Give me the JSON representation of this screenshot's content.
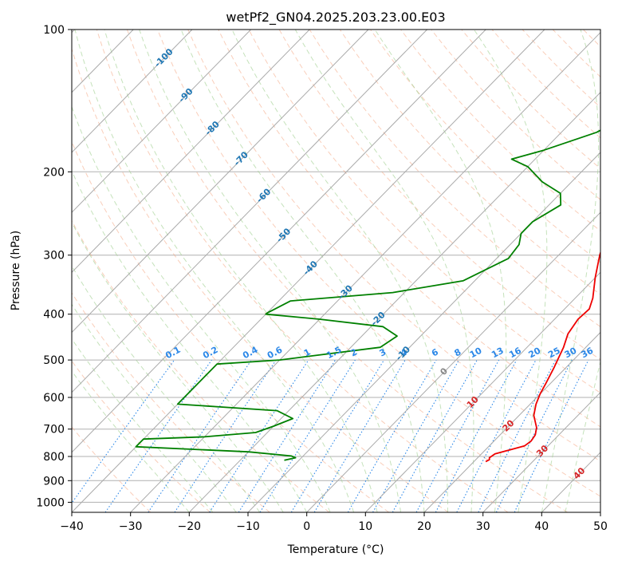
{
  "chart_data": {
    "type": "line",
    "title": "wetPf2_GN04.2025.203.23.00.E03",
    "xlabel": "Temperature (°C)",
    "ylabel": "Pressure (hPa)",
    "xlim": [
      -40,
      50
    ],
    "ylim": [
      1050,
      100
    ],
    "y_scale": "log",
    "x_ticks": [
      -40,
      -30,
      -20,
      -10,
      0,
      10,
      20,
      30,
      40,
      50
    ],
    "x_tick_labels": [
      "−40",
      "−30",
      "−20",
      "−10",
      "0",
      "10",
      "20",
      "30",
      "40",
      "50"
    ],
    "y_ticks": [
      100,
      200,
      300,
      400,
      500,
      600,
      700,
      800,
      900,
      1000
    ],
    "y_tick_labels": [
      "100",
      "200",
      "300",
      "400",
      "500",
      "600",
      "700",
      "800",
      "900",
      "1000"
    ],
    "grid": true,
    "series": [
      {
        "role": "temperature",
        "color": "#ee0000",
        "points": [
          [
            22.0,
            820
          ],
          [
            22.3,
            812
          ],
          [
            22.0,
            805
          ],
          [
            22.3,
            790
          ],
          [
            23.5,
            780
          ],
          [
            26.0,
            760
          ],
          [
            26.3,
            742
          ],
          [
            26.0,
            720
          ],
          [
            25.0,
            695
          ],
          [
            22.5,
            655
          ],
          [
            21.0,
            620
          ],
          [
            20.0,
            590
          ],
          [
            19.2,
            560
          ],
          [
            18.0,
            520
          ],
          [
            17.3,
            500
          ],
          [
            16.2,
            470
          ],
          [
            14.7,
            440
          ],
          [
            14.0,
            410
          ],
          [
            14.2,
            390
          ],
          [
            13.0,
            370
          ],
          [
            10.0,
            335
          ],
          [
            7.0,
            300
          ],
          [
            5.0,
            275
          ],
          [
            3.0,
            245
          ],
          [
            2.6,
            230
          ],
          [
            3.6,
            215
          ],
          [
            4.8,
            200
          ],
          [
            5.7,
            185
          ],
          [
            6.0,
            168
          ],
          [
            5.7,
            150
          ],
          [
            5.2,
            135
          ],
          [
            4.8,
            120
          ],
          [
            5.2,
            110
          ],
          [
            6.5,
            104
          ],
          [
            7.8,
            100
          ]
        ]
      },
      {
        "role": "dewpoint",
        "color": "#008000",
        "points": [
          [
            -12.5,
            815
          ],
          [
            -11.0,
            805
          ],
          [
            -12.0,
            798
          ],
          [
            -20.0,
            782
          ],
          [
            -40.0,
            763
          ],
          [
            -40.0,
            735
          ],
          [
            -30.0,
            727
          ],
          [
            -22.0,
            712
          ],
          [
            -20.0,
            690
          ],
          [
            -18.0,
            665
          ],
          [
            -22.0,
            640
          ],
          [
            -40.0,
            620
          ],
          [
            -40.0,
            510
          ],
          [
            -30.0,
            500
          ],
          [
            -15.0,
            470
          ],
          [
            -14.0,
            445
          ],
          [
            -18.0,
            425
          ],
          [
            -30.0,
            410
          ],
          [
            -40.0,
            400
          ],
          [
            -40.0,
            398
          ],
          [
            -38.0,
            375
          ],
          [
            -22.0,
            360
          ],
          [
            -12.0,
            340
          ],
          [
            -8.0,
            305
          ],
          [
            -8.5,
            285
          ],
          [
            -10.0,
            270
          ],
          [
            -10.0,
            255
          ],
          [
            -8.0,
            235
          ],
          [
            -10.0,
            222
          ],
          [
            -15.0,
            210
          ],
          [
            -20.0,
            195
          ],
          [
            -24.0,
            188
          ],
          [
            -20.0,
            180
          ],
          [
            -14.0,
            165
          ],
          [
            -12.0,
            155
          ],
          [
            -10.5,
            140
          ],
          [
            -9.5,
            128
          ],
          [
            -7.5,
            118
          ],
          [
            -5.0,
            110
          ],
          [
            -3.0,
            104
          ],
          [
            -2.0,
            100
          ]
        ]
      }
    ],
    "isotherm_labels": [
      "-100",
      "-90",
      "-80",
      "-70",
      "-60",
      "-50",
      "-40",
      "-30",
      "-20",
      "-10",
      "0",
      "10",
      "20",
      "30",
      "40"
    ],
    "isotherm_label_values": [
      -100,
      -90,
      -80,
      -70,
      -60,
      -50,
      -40,
      -30,
      -20,
      -10,
      0,
      10,
      20,
      30,
      40
    ],
    "mixing_ratio_labels": [
      "0.1",
      "0.2",
      "0.4",
      "0.6",
      "1",
      "1.5",
      "2",
      "3",
      "4",
      "6",
      "8",
      "10",
      "13",
      "16",
      "20",
      "25",
      "30",
      "36"
    ],
    "mixing_ratio_values": [
      0.1,
      0.2,
      0.4,
      0.6,
      1,
      1.5,
      2,
      3,
      4,
      6,
      8,
      10,
      13,
      16,
      20,
      25,
      30,
      36
    ],
    "colors": {
      "temperature": "#ee0000",
      "dewpoint": "#008000",
      "isotherm": "#aaaaaa",
      "dry_adiabat": "#f4a582",
      "moist_adiabat": "#a6d396",
      "mixing_ratio": "#2c88e8",
      "isotherm_label_cold": "#1f77b4",
      "isotherm_label_zero": "#888888",
      "isotherm_label_warm": "#d62728",
      "mixing_ratio_label": "#2c88e8"
    }
  }
}
